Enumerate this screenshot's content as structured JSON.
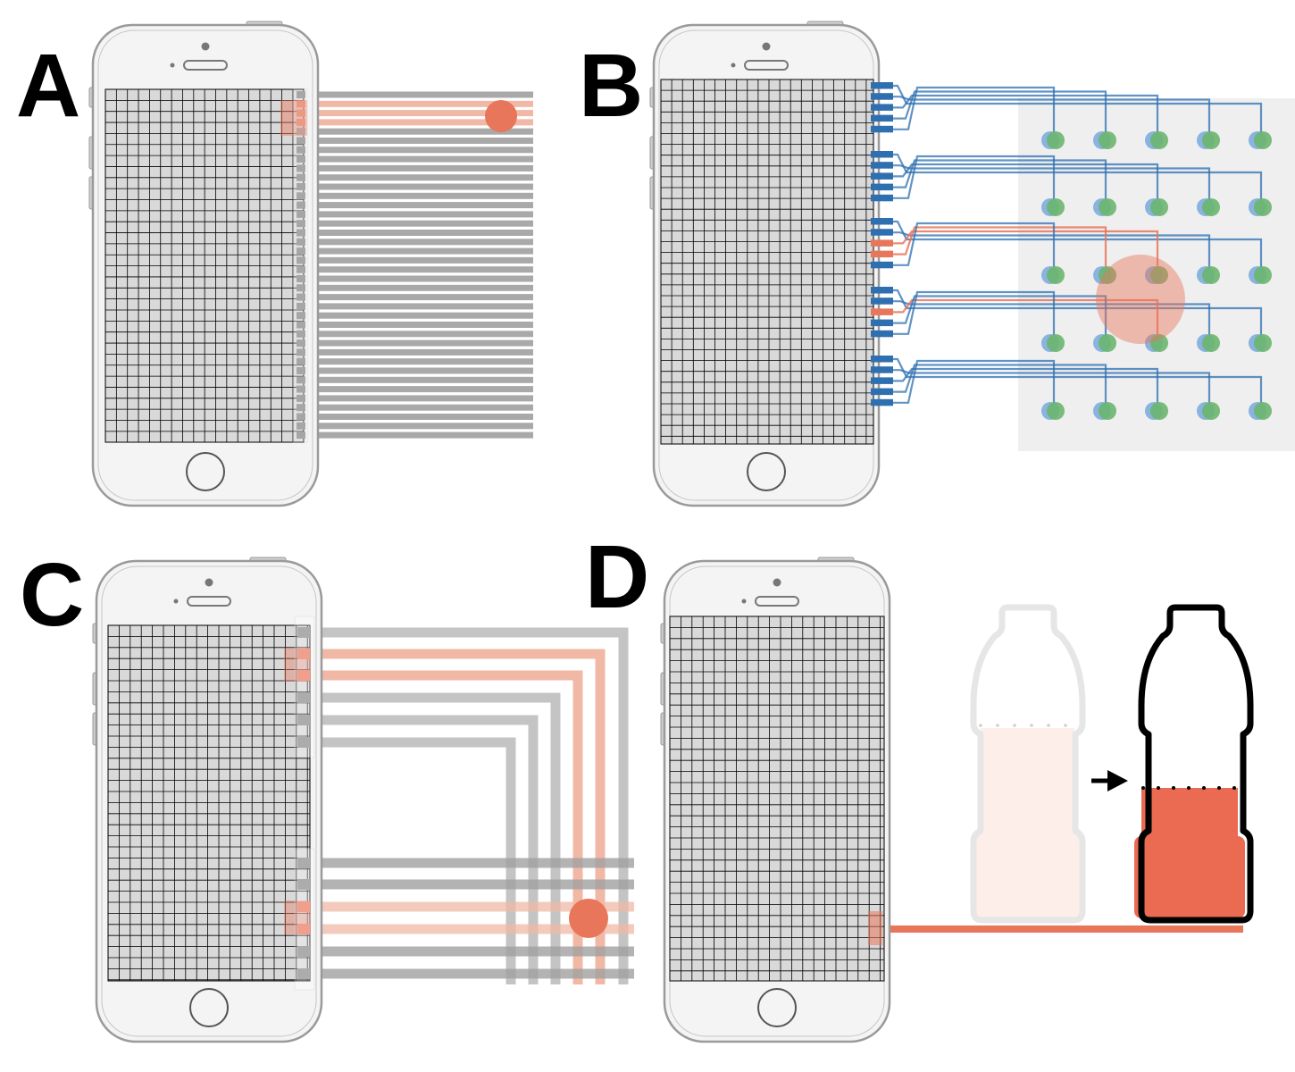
{
  "panels": [
    {
      "id": "A",
      "label": "A"
    },
    {
      "id": "B",
      "label": "B"
    },
    {
      "id": "C",
      "label": "C"
    },
    {
      "id": "D",
      "label": "D"
    }
  ],
  "colors": {
    "background": "#ffffff",
    "phone_body": "#f4f4f4",
    "phone_outline": "#9a9a9a",
    "screen_cell": "#d9d9d9",
    "screen_grid": "#000000",
    "trace_gray": "#a9a9a9",
    "active_orange": "#e8765a",
    "active_orange_light": "#f0b8a5",
    "trace_blue": "#2e6fb0",
    "node_green": "#6ab56e",
    "node_blue": "#8ab3e0",
    "sensor_area": "#efefef",
    "liquid_light": "#fdeeea",
    "liquid_full": "#ea6b52"
  },
  "icons": [
    "phone-icon",
    "home-button-icon",
    "bottle-empty-icon",
    "bottle-full-icon",
    "arrow-right-icon",
    "touch-point-icon"
  ]
}
